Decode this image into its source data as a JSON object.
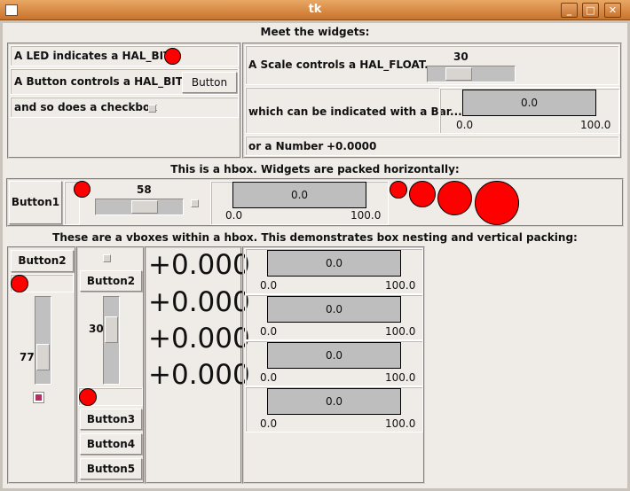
{
  "window": {
    "title": "tk",
    "buttons": [
      "minimize",
      "maximize",
      "close"
    ]
  },
  "section1": {
    "title": "Meet the widgets:",
    "led_label": "A LED indicates a HAL_BIT:",
    "button_label": "A Button controls a HAL_BIT...",
    "button": "Button",
    "checkbox_label": "and so does a checkbox",
    "scale_label": "A Scale controls a HAL_FLOAT...",
    "scale_value": "30",
    "bar_label": "which can be indicated with a Bar...",
    "bar_value": "0.0",
    "bar_min": "0.0",
    "bar_max": "100.0",
    "number_label": "or a Number",
    "number_value": "+0.0000"
  },
  "section2": {
    "title": "This is a hbox. Widgets are packed horizontally:",
    "button": "Button1",
    "scale_value": "58",
    "bar_value": "0.0",
    "bar_min": "0.0",
    "bar_max": "100.0"
  },
  "section3": {
    "title": "These are a vboxes within a hbox. This demonstrates box nesting and vertical packing:",
    "col1": {
      "button": "Button2",
      "scale_value": "77",
      "checkbox_checked": true,
      "checkbox_color": "#b03060"
    },
    "col2": {
      "button": "Button2",
      "scale_value": "30",
      "buttons": [
        "Button3",
        "Button4",
        "Button5"
      ]
    },
    "numbers": [
      "+0.000",
      "+0.000",
      "+0.000",
      "+0.000"
    ],
    "bars": [
      {
        "value": "0.0",
        "min": "0.0",
        "max": "100.0"
      },
      {
        "value": "0.0",
        "min": "0.0",
        "max": "100.0"
      },
      {
        "value": "0.0",
        "min": "0.0",
        "max": "100.0"
      },
      {
        "value": "0.0",
        "min": "0.0",
        "max": "100.0"
      }
    ]
  },
  "colors": {
    "led_on": "#ff0000",
    "background": "#efebe7",
    "bar_fill": "#bebebe",
    "titlebar": "#d88a3f"
  }
}
